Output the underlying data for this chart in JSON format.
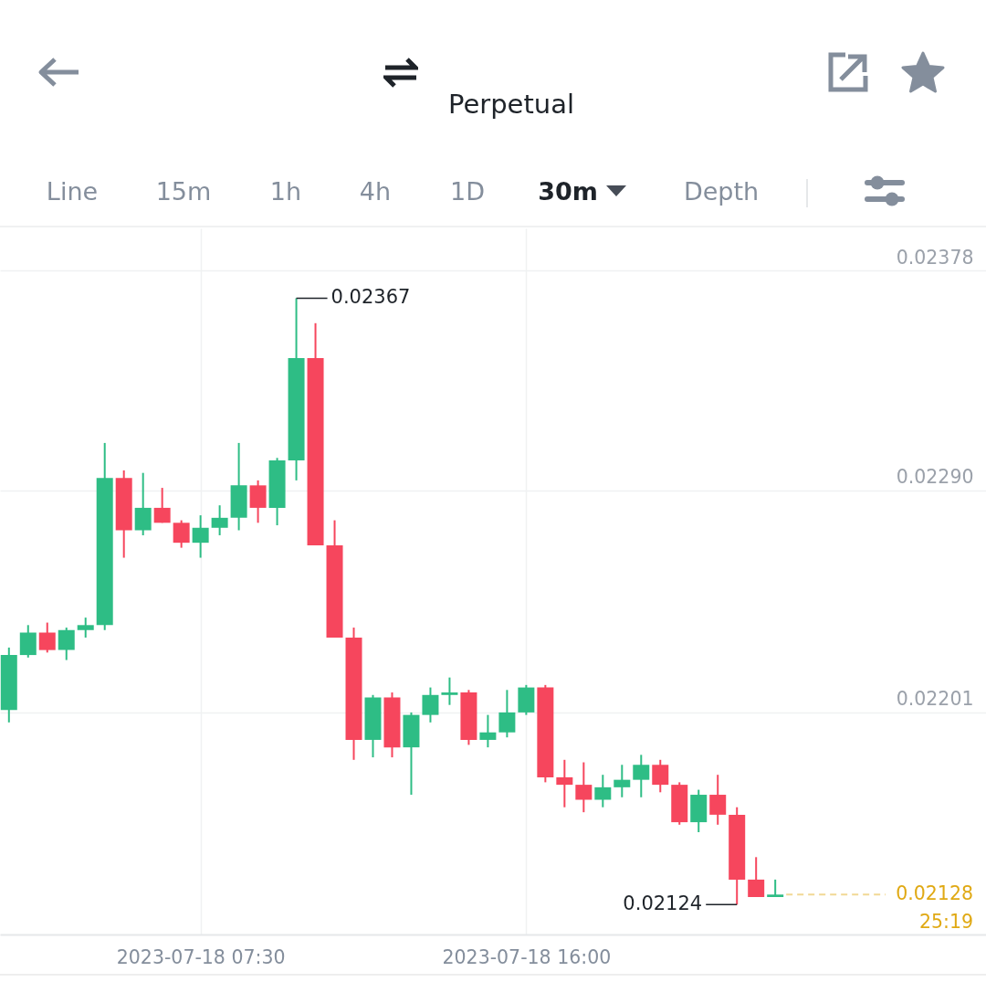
{
  "chart_data": {
    "type": "candlestick",
    "subtitle": "Perpetual",
    "x": [
      "2023-07-18T02:30",
      "2023-07-18T03:00",
      "2023-07-18T03:30",
      "2023-07-18T04:00",
      "2023-07-18T04:30",
      "2023-07-18T05:00",
      "2023-07-18T05:30",
      "2023-07-18T06:00",
      "2023-07-18T06:30",
      "2023-07-18T07:00",
      "2023-07-18T07:30",
      "2023-07-18T08:00",
      "2023-07-18T08:30",
      "2023-07-18T09:00",
      "2023-07-18T09:30",
      "2023-07-18T10:00",
      "2023-07-18T10:30",
      "2023-07-18T11:00",
      "2023-07-18T11:30",
      "2023-07-18T12:00",
      "2023-07-18T12:30",
      "2023-07-18T13:00",
      "2023-07-18T13:30",
      "2023-07-18T14:00",
      "2023-07-18T14:30",
      "2023-07-18T15:00",
      "2023-07-18T15:30",
      "2023-07-18T16:00",
      "2023-07-18T16:30",
      "2023-07-18T17:00",
      "2023-07-18T17:30",
      "2023-07-18T18:00",
      "2023-07-18T18:30",
      "2023-07-18T19:00",
      "2023-07-18T19:30",
      "2023-07-18T20:00",
      "2023-07-18T20:30",
      "2023-07-18T21:00",
      "2023-07-18T21:30",
      "2023-07-18T22:00",
      "2023-07-18T22:30"
    ],
    "ohlc": [
      [
        0.02202,
        0.02227,
        0.02197,
        0.02224
      ],
      [
        0.02224,
        0.02236,
        0.02223,
        0.02233
      ],
      [
        0.02233,
        0.02237,
        0.02225,
        0.02226
      ],
      [
        0.02226,
        0.02235,
        0.02222,
        0.02234
      ],
      [
        0.02234,
        0.02239,
        0.02231,
        0.02236
      ],
      [
        0.02236,
        0.02309,
        0.02234,
        0.02295
      ],
      [
        0.02295,
        0.02298,
        0.02263,
        0.02274
      ],
      [
        0.02274,
        0.02297,
        0.02272,
        0.02283
      ],
      [
        0.02283,
        0.02291,
        0.02277,
        0.02277
      ],
      [
        0.02277,
        0.02278,
        0.02267,
        0.02269
      ],
      [
        0.02269,
        0.0228,
        0.02263,
        0.02275
      ],
      [
        0.02275,
        0.02284,
        0.02272,
        0.02279
      ],
      [
        0.02279,
        0.02309,
        0.02274,
        0.02292
      ],
      [
        0.02292,
        0.02294,
        0.02277,
        0.02283
      ],
      [
        0.02283,
        0.02303,
        0.02276,
        0.02302
      ],
      [
        0.02302,
        0.02367,
        0.02294,
        0.02343
      ],
      [
        0.02343,
        0.02357,
        0.02268,
        0.02268
      ],
      [
        0.02268,
        0.02278,
        0.02231,
        0.02231
      ],
      [
        0.02231,
        0.02235,
        0.02182,
        0.0219
      ],
      [
        0.0219,
        0.02208,
        0.02183,
        0.02207
      ],
      [
        0.02207,
        0.02209,
        0.02183,
        0.02187
      ],
      [
        0.02187,
        0.02201,
        0.02168,
        0.022
      ],
      [
        0.022,
        0.02211,
        0.02197,
        0.02208
      ],
      [
        0.02208,
        0.02215,
        0.02204,
        0.02209
      ],
      [
        0.02209,
        0.0221,
        0.02188,
        0.0219
      ],
      [
        0.0219,
        0.022,
        0.02187,
        0.02193
      ],
      [
        0.02193,
        0.0221,
        0.02191,
        0.02201
      ],
      [
        0.02201,
        0.02212,
        0.022,
        0.02211
      ],
      [
        0.02211,
        0.02212,
        0.02173,
        0.02175
      ],
      [
        0.02175,
        0.02182,
        0.02163,
        0.02172
      ],
      [
        0.02172,
        0.02181,
        0.02161,
        0.02166
      ],
      [
        0.02166,
        0.02176,
        0.02163,
        0.02171
      ],
      [
        0.02171,
        0.0218,
        0.02167,
        0.02174
      ],
      [
        0.02174,
        0.02184,
        0.02167,
        0.0218
      ],
      [
        0.0218,
        0.02182,
        0.02169,
        0.02172
      ],
      [
        0.02172,
        0.02173,
        0.02156,
        0.02157
      ],
      [
        0.02157,
        0.0217,
        0.02153,
        0.02168
      ],
      [
        0.02168,
        0.02176,
        0.02156,
        0.0216
      ],
      [
        0.0216,
        0.02163,
        0.02124,
        0.02134
      ],
      [
        0.02134,
        0.02143,
        0.02127,
        0.02127
      ],
      [
        0.02127,
        0.02134,
        0.02127,
        0.02128
      ]
    ],
    "colors": [
      "#2ebd85",
      "#2ebd85",
      "#f6465d",
      "#2ebd85",
      "#2ebd85",
      "#2ebd85",
      "#f6465d",
      "#2ebd85",
      "#f6465d",
      "#f6465d",
      "#2ebd85",
      "#2ebd85",
      "#2ebd85",
      "#f6465d",
      "#2ebd85",
      "#2ebd85",
      "#f6465d",
      "#f6465d",
      "#f6465d",
      "#2ebd85",
      "#f6465d",
      "#2ebd85",
      "#2ebd85",
      "#2ebd85",
      "#f6465d",
      "#2ebd85",
      "#2ebd85",
      "#2ebd85",
      "#f6465d",
      "#f6465d",
      "#f6465d",
      "#2ebd85",
      "#2ebd85",
      "#2ebd85",
      "#f6465d",
      "#f6465d",
      "#2ebd85",
      "#f6465d",
      "#f6465d",
      "#f6465d",
      "#2ebd85"
    ],
    "xlim": [
      "2023-07-18T02:16",
      "2023-07-19T04:00"
    ],
    "xticks": [
      {
        "value": "2023-07-18T07:30",
        "label": "2023-07-18 07:30"
      },
      {
        "value": "2023-07-18T16:00",
        "label": "2023-07-18 16:00"
      }
    ],
    "ylim": [
      0.02112,
      0.02395
    ],
    "yticks": [
      0.02378,
      {
        "value": 0.0229,
        "label": "0.02290"
      },
      0.02201
    ],
    "grid": true,
    "ref_lines": [
      {
        "axis": "y",
        "value": 0.02128,
        "label": "0.02128",
        "color": "#e0a914",
        "line_style": "dashed"
      }
    ],
    "annotations": [
      "Line",
      "15m",
      "1h",
      "4h",
      "1D",
      "30m",
      "Depth",
      "25:19",
      {
        "text": "0.02367",
        "x": "2023-07-18T10:00",
        "y": 0.02367
      },
      {
        "text": "0.02124",
        "x": "2023-07-18T21:30",
        "y": 0.02124
      }
    ]
  }
}
